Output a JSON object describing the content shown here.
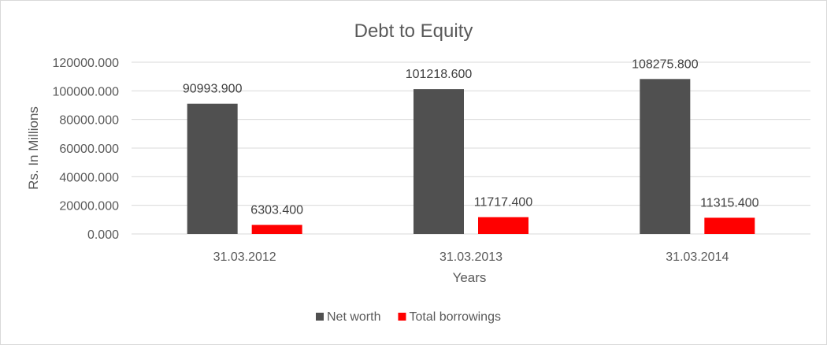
{
  "chart_data": {
    "type": "bar",
    "title": "Debt to Equity",
    "xlabel": "Years",
    "ylabel": "Rs. In Millions",
    "categories": [
      "31.03.2012",
      "31.03.2013",
      "31.03.2014"
    ],
    "series": [
      {
        "name": "Net worth",
        "color": "#505050",
        "values": [
          90993.9,
          101218.6,
          108275.8
        ]
      },
      {
        "name": "Total borrowings",
        "color": "#ff0000",
        "values": [
          6303.4,
          11717.4,
          11315.4
        ]
      }
    ],
    "ylim": [
      0,
      120000
    ],
    "yticks": [
      0,
      20000,
      40000,
      60000,
      80000,
      100000,
      120000
    ],
    "ytick_decimals": 3,
    "data_label_decimals": 3,
    "grid": true,
    "legend_position": "bottom"
  }
}
